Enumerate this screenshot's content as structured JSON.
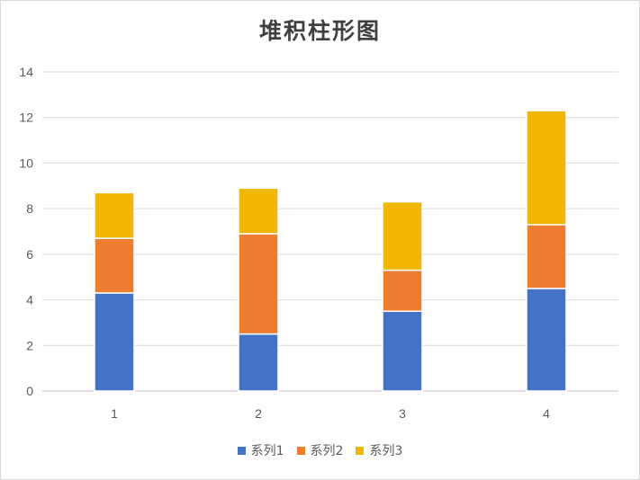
{
  "chart_data": {
    "type": "bar",
    "stacked": true,
    "title": "堆积柱形图",
    "categories": [
      "1",
      "2",
      "3",
      "4"
    ],
    "series": [
      {
        "name": "系列1",
        "values": [
          4.3,
          2.5,
          3.5,
          4.5
        ],
        "color": "#4472c4"
      },
      {
        "name": "系列2",
        "values": [
          2.4,
          4.4,
          1.8,
          2.8
        ],
        "color": "#ed7d31"
      },
      {
        "name": "系列3",
        "values": [
          2.0,
          2.0,
          3.0,
          5.0
        ],
        "color": "#f2b705"
      }
    ],
    "ylim": [
      0,
      14
    ],
    "yticks": [
      "0",
      "2",
      "4",
      "6",
      "8",
      "10",
      "12",
      "14"
    ],
    "grid": true,
    "legend_position": "bottom"
  }
}
